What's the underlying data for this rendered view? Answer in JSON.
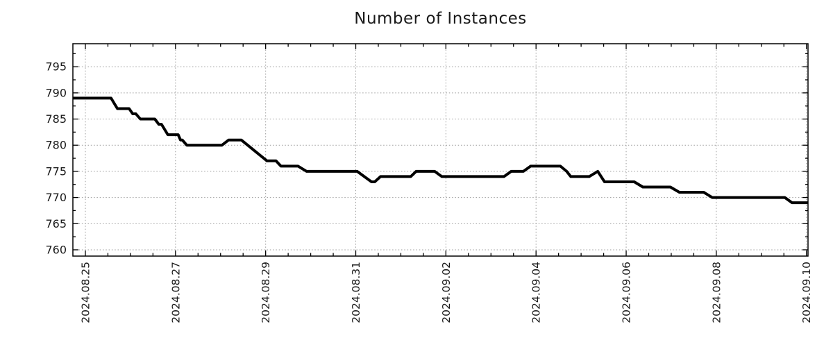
{
  "chart_data": {
    "type": "line",
    "title": "Number of Instances",
    "legend": "none",
    "grid": "dotted",
    "x_axis": {
      "kind": "date",
      "tick_labels": [
        "2024.08.25",
        "2024.08.27",
        "2024.08.29",
        "2024.08.31",
        "2024.09.02",
        "2024.09.04",
        "2024.09.06",
        "2024.09.08",
        "2024.09.10"
      ],
      "tick_days": [
        0,
        2,
        4,
        6,
        8,
        10,
        12,
        14,
        16
      ],
      "minor_tick_interval_days": 0.5,
      "range_days": [
        -0.277,
        16.035
      ]
    },
    "y_axis": {
      "tick_values": [
        760,
        765,
        770,
        775,
        780,
        785,
        790,
        795
      ],
      "minor_tick_values": [
        762.5,
        767.5,
        772.5,
        777.5,
        782.5,
        787.5,
        792.5,
        797.5
      ],
      "range": [
        758.8,
        799.4
      ]
    },
    "series": [
      {
        "name": "instances",
        "color": "#000000",
        "points_day_value": [
          [
            -0.277,
            789
          ],
          [
            0.57,
            789
          ],
          [
            0.71,
            787
          ],
          [
            0.97,
            787
          ],
          [
            1.05,
            786
          ],
          [
            1.12,
            786
          ],
          [
            1.22,
            785
          ],
          [
            1.54,
            785
          ],
          [
            1.63,
            784
          ],
          [
            1.69,
            784
          ],
          [
            1.83,
            782
          ],
          [
            2.06,
            782
          ],
          [
            2.11,
            781
          ],
          [
            2.15,
            781
          ],
          [
            2.25,
            780
          ],
          [
            3.03,
            780
          ],
          [
            3.18,
            781
          ],
          [
            3.46,
            781
          ],
          [
            4.03,
            777
          ],
          [
            4.23,
            777
          ],
          [
            4.34,
            776
          ],
          [
            4.72,
            776
          ],
          [
            4.91,
            775
          ],
          [
            6.03,
            775
          ],
          [
            6.35,
            773
          ],
          [
            6.42,
            773
          ],
          [
            6.55,
            774
          ],
          [
            7.22,
            774
          ],
          [
            7.34,
            775
          ],
          [
            7.75,
            775
          ],
          [
            7.91,
            774
          ],
          [
            9.29,
            774
          ],
          [
            9.45,
            775
          ],
          [
            9.72,
            775
          ],
          [
            9.88,
            776
          ],
          [
            10.54,
            776
          ],
          [
            10.68,
            775
          ],
          [
            10.77,
            774
          ],
          [
            11.18,
            774
          ],
          [
            11.37,
            775
          ],
          [
            11.52,
            773
          ],
          [
            12.18,
            773
          ],
          [
            12.37,
            772
          ],
          [
            12.98,
            772
          ],
          [
            13.18,
            771
          ],
          [
            13.72,
            771
          ],
          [
            13.91,
            770
          ],
          [
            15.52,
            770
          ],
          [
            15.68,
            769
          ],
          [
            16.035,
            769
          ]
        ]
      }
    ],
    "colors": {
      "line": "#000000",
      "grid": "#9a9a9a",
      "border": "#000000",
      "text": "#1a1a1a",
      "background": "#ffffff"
    }
  }
}
